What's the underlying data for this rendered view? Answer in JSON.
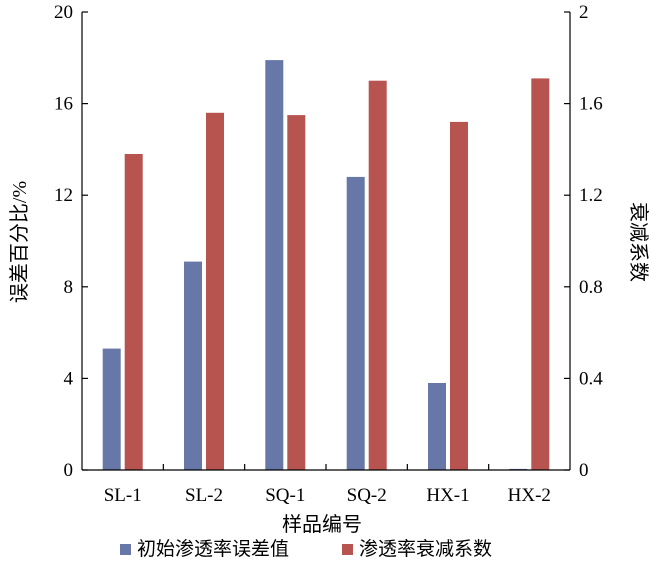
{
  "chart_data": {
    "type": "bar",
    "title": "",
    "categories": [
      "SL-1",
      "SL-2",
      "SQ-1",
      "SQ-2",
      "HX-1",
      "HX-2"
    ],
    "xlabel": "样品编号",
    "ylabel_left": "误差百分比/%",
    "ylabel_right": "衰减系数",
    "ylim_left": [
      0,
      20
    ],
    "ylim_right": [
      0,
      2
    ],
    "yticks_left": [
      0,
      4,
      8,
      12,
      16,
      20
    ],
    "yticks_right": [
      0,
      0.4,
      0.8,
      1.2,
      1.6,
      2
    ],
    "ytick_labels_left": [
      "0",
      "4",
      "8",
      "12",
      "16",
      "20"
    ],
    "ytick_labels_right": [
      "0",
      "0.4",
      "0.8",
      "1.2",
      "1.6",
      "2"
    ],
    "grid": false,
    "legend_position": "bottom",
    "series": [
      {
        "name": "初始渗透率误差值",
        "axis": "left",
        "color": "#6677a8",
        "values": [
          5.3,
          9.1,
          17.9,
          12.8,
          3.8,
          0.05
        ]
      },
      {
        "name": "渗透率衰减系数",
        "axis": "right",
        "color": "#b85450",
        "values": [
          1.38,
          1.56,
          1.55,
          1.7,
          1.52,
          1.71
        ]
      }
    ]
  }
}
